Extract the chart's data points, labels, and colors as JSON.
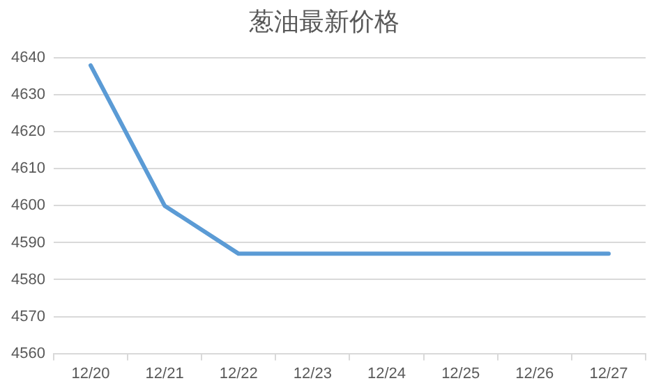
{
  "chart_data": {
    "type": "line",
    "title": "葱油最新价格",
    "categories": [
      "12/20",
      "12/21",
      "12/22",
      "12/23",
      "12/24",
      "12/25",
      "12/26",
      "12/27"
    ],
    "series": [
      {
        "color": "#5b9bd5",
        "values": [
          4638,
          4600,
          4587,
          4587,
          4587,
          4587,
          4587,
          4587
        ]
      }
    ],
    "ylim": [
      4560,
      4640
    ],
    "yticks": [
      4560,
      4570,
      4580,
      4590,
      4600,
      4610,
      4620,
      4630,
      4640
    ],
    "grid": "y",
    "legend": false,
    "marker": "none",
    "line_style": "solid"
  }
}
